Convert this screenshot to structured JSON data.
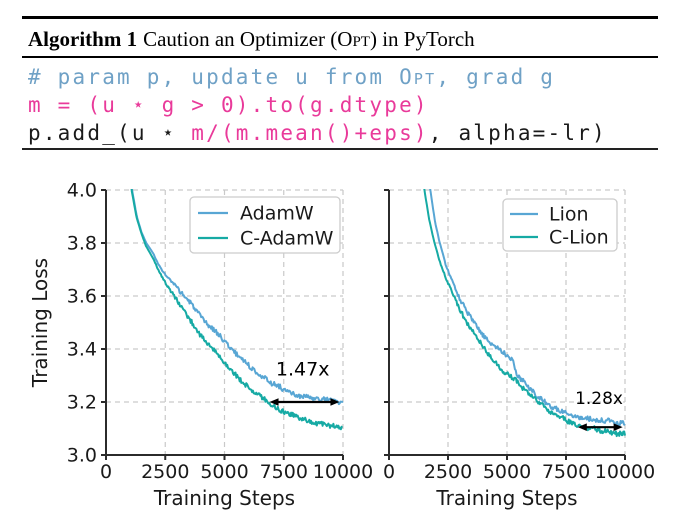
{
  "page": {
    "background": "#ffffff"
  },
  "algorithm": {
    "label": "Algorithm 1",
    "title_pre": "Caution an Optimizer (",
    "title_smallcaps": "Opt",
    "title_post": ") in PyTorch",
    "colors": {
      "comment": "#6fa1c6",
      "highlight": "#e93a9a",
      "plain": "#1a1a1a"
    },
    "code_lines": [
      {
        "segments": [
          {
            "text": "# param p, update u from ",
            "color": "comment"
          },
          {
            "text": "Opt",
            "color": "comment",
            "smallcaps": true
          },
          {
            "text": ", grad g",
            "color": "comment"
          }
        ]
      },
      {
        "segments": [
          {
            "text": "m = (u ⋆ g > 0).to(g.dtype)",
            "color": "highlight"
          }
        ]
      },
      {
        "segments": [
          {
            "text": "p.add_(u ⋆ ",
            "color": "plain"
          },
          {
            "text": "m/(m.mean()+eps)",
            "color": "highlight"
          },
          {
            "text": ", alpha=-lr)",
            "color": "plain"
          }
        ]
      }
    ]
  },
  "chart_data": [
    {
      "type": "line",
      "title": "",
      "xlabel": "Training Steps",
      "ylabel": "Training Loss",
      "xlim": [
        0,
        10000
      ],
      "ylim": [
        3.0,
        4.0
      ],
      "xticks": [
        {
          "v": 0,
          "label": "0"
        },
        {
          "v": 2500,
          "label": "2500"
        },
        {
          "v": 5000,
          "label": "5000"
        },
        {
          "v": 7500,
          "label": "7500"
        },
        {
          "v": 10000,
          "label": "10000"
        }
      ],
      "yticks": [
        {
          "v": 3.0,
          "label": "3.0"
        },
        {
          "v": 3.2,
          "label": "3.2"
        },
        {
          "v": 3.4,
          "label": "3.4"
        },
        {
          "v": 3.6,
          "label": "3.6"
        },
        {
          "v": 3.8,
          "label": "3.8"
        },
        {
          "v": 4.0,
          "label": "4.0"
        }
      ],
      "show_ytick_labels": true,
      "grid": true,
      "legend_position": "upper right",
      "noise": 0.009,
      "series": [
        {
          "name": "AdamW",
          "color": "#58a6d4",
          "points": [
            [
              900,
              4.18
            ],
            [
              1100,
              4.0
            ],
            [
              1300,
              3.9
            ],
            [
              1500,
              3.84
            ],
            [
              1700,
              3.8
            ],
            [
              2000,
              3.76
            ],
            [
              2200,
              3.72
            ],
            [
              2500,
              3.68
            ],
            [
              2800,
              3.65
            ],
            [
              3100,
              3.62
            ],
            [
              3400,
              3.59
            ],
            [
              3700,
              3.56
            ],
            [
              4000,
              3.52
            ],
            [
              4300,
              3.49
            ],
            [
              4600,
              3.47
            ],
            [
              4900,
              3.44
            ],
            [
              5200,
              3.41
            ],
            [
              5500,
              3.38
            ],
            [
              5800,
              3.36
            ],
            [
              6100,
              3.33
            ],
            [
              6400,
              3.31
            ],
            [
              6700,
              3.29
            ],
            [
              7000,
              3.27
            ],
            [
              7300,
              3.26
            ],
            [
              7600,
              3.24
            ],
            [
              7900,
              3.23
            ],
            [
              8200,
              3.22
            ],
            [
              8500,
              3.22
            ],
            [
              8800,
              3.21
            ],
            [
              9100,
              3.21
            ],
            [
              9400,
              3.21
            ],
            [
              9700,
              3.2
            ],
            [
              10000,
              3.2
            ]
          ]
        },
        {
          "name": "C-AdamW",
          "color": "#16aaa4",
          "points": [
            [
              880,
              4.18
            ],
            [
              1080,
              4.0
            ],
            [
              1280,
              3.9
            ],
            [
              1480,
              3.84
            ],
            [
              1680,
              3.79
            ],
            [
              2000,
              3.74
            ],
            [
              2200,
              3.7
            ],
            [
              2500,
              3.65
            ],
            [
              2800,
              3.61
            ],
            [
              3100,
              3.57
            ],
            [
              3400,
              3.53
            ],
            [
              3700,
              3.49
            ],
            [
              4000,
              3.45
            ],
            [
              4300,
              3.42
            ],
            [
              4600,
              3.39
            ],
            [
              4900,
              3.36
            ],
            [
              5200,
              3.33
            ],
            [
              5500,
              3.3
            ],
            [
              5800,
              3.27
            ],
            [
              6100,
              3.25
            ],
            [
              6400,
              3.23
            ],
            [
              6700,
              3.21
            ],
            [
              7000,
              3.19
            ],
            [
              7300,
              3.17
            ],
            [
              7600,
              3.16
            ],
            [
              7900,
              3.15
            ],
            [
              8200,
              3.14
            ],
            [
              8500,
              3.13
            ],
            [
              8800,
              3.12
            ],
            [
              9100,
              3.12
            ],
            [
              9400,
              3.11
            ],
            [
              9700,
              3.11
            ],
            [
              10000,
              3.1
            ]
          ]
        }
      ],
      "annotation": {
        "text": "1.47x",
        "text_x": 8300,
        "text_y": 3.325,
        "arrow_x1": 6900,
        "arrow_x2": 9850,
        "arrow_y": 3.2
      }
    },
    {
      "type": "line",
      "title": "",
      "xlabel": "Training Steps",
      "ylabel": "",
      "xlim": [
        0,
        10000
      ],
      "ylim": [
        3.0,
        4.0
      ],
      "xticks": [
        {
          "v": 0,
          "label": "0"
        },
        {
          "v": 2500,
          "label": "2500"
        },
        {
          "v": 5000,
          "label": "5000"
        },
        {
          "v": 7500,
          "label": "7500"
        },
        {
          "v": 10000,
          "label": "10000"
        }
      ],
      "yticks": [
        {
          "v": 3.0,
          "label": "3.0"
        },
        {
          "v": 3.2,
          "label": "3.2"
        },
        {
          "v": 3.4,
          "label": "3.4"
        },
        {
          "v": 3.6,
          "label": "3.6"
        },
        {
          "v": 3.8,
          "label": "3.8"
        },
        {
          "v": 4.0,
          "label": "4.0"
        }
      ],
      "show_ytick_labels": false,
      "grid": true,
      "legend_position": "upper right",
      "noise": 0.009,
      "series": [
        {
          "name": "Lion",
          "color": "#58a6d4",
          "points": [
            [
              1450,
              4.2
            ],
            [
              1750,
              4.0
            ],
            [
              1950,
              3.88
            ],
            [
              2150,
              3.8
            ],
            [
              2400,
              3.72
            ],
            [
              2700,
              3.65
            ],
            [
              3000,
              3.59
            ],
            [
              3300,
              3.54
            ],
            [
              3600,
              3.5
            ],
            [
              3900,
              3.46
            ],
            [
              4200,
              3.43
            ],
            [
              4500,
              3.41
            ],
            [
              4800,
              3.39
            ],
            [
              5100,
              3.37
            ],
            [
              5250,
              3.36
            ],
            [
              5400,
              3.3
            ],
            [
              5700,
              3.28
            ],
            [
              6000,
              3.25
            ],
            [
              6300,
              3.22
            ],
            [
              6600,
              3.2
            ],
            [
              6900,
              3.18
            ],
            [
              7200,
              3.17
            ],
            [
              7500,
              3.16
            ],
            [
              7800,
              3.15
            ],
            [
              8100,
              3.14
            ],
            [
              8400,
              3.14
            ],
            [
              8700,
              3.13
            ],
            [
              9000,
              3.13
            ],
            [
              9300,
              3.13
            ],
            [
              9600,
              3.12
            ],
            [
              10000,
              3.12
            ]
          ]
        },
        {
          "name": "C-Lion",
          "color": "#16aaa4",
          "points": [
            [
              1250,
              4.2
            ],
            [
              1500,
              4.0
            ],
            [
              1700,
              3.89
            ],
            [
              1900,
              3.81
            ],
            [
              2150,
              3.73
            ],
            [
              2400,
              3.67
            ],
            [
              2700,
              3.61
            ],
            [
              3000,
              3.55
            ],
            [
              3300,
              3.5
            ],
            [
              3600,
              3.46
            ],
            [
              3900,
              3.42
            ],
            [
              4200,
              3.38
            ],
            [
              4500,
              3.35
            ],
            [
              4800,
              3.32
            ],
            [
              5100,
              3.3
            ],
            [
              5400,
              3.28
            ],
            [
              5700,
              3.25
            ],
            [
              6000,
              3.23
            ],
            [
              6300,
              3.2
            ],
            [
              6600,
              3.18
            ],
            [
              6900,
              3.16
            ],
            [
              7200,
              3.15
            ],
            [
              7500,
              3.13
            ],
            [
              7800,
              3.12
            ],
            [
              8100,
              3.11
            ],
            [
              8400,
              3.1
            ],
            [
              8700,
              3.1
            ],
            [
              9000,
              3.09
            ],
            [
              9300,
              3.09
            ],
            [
              9600,
              3.08
            ],
            [
              10000,
              3.08
            ]
          ]
        }
      ],
      "annotation": {
        "text": "1.28x",
        "text_x": 8900,
        "text_y": 3.215,
        "arrow_x1": 8000,
        "arrow_x2": 9900,
        "arrow_y": 3.105
      }
    }
  ]
}
